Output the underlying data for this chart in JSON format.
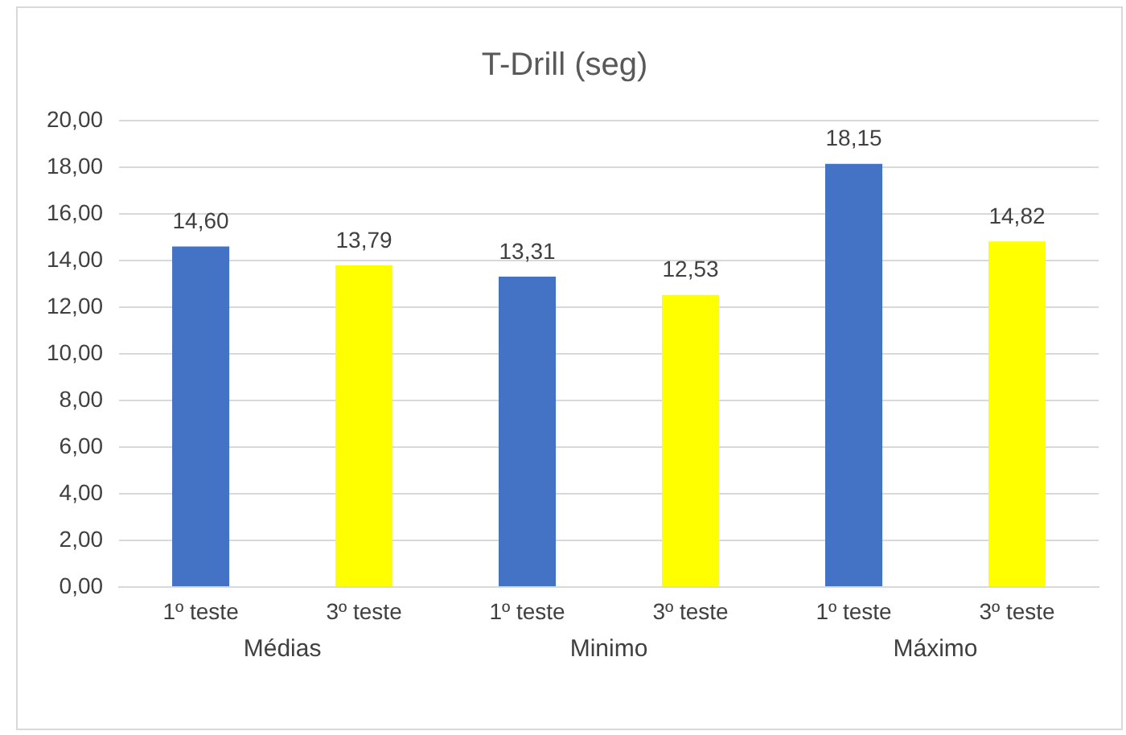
{
  "chart_data": {
    "type": "bar",
    "title": "T-Drill (seg)",
    "categories": [
      "Médias",
      "Minimo",
      "Máximo"
    ],
    "series": [
      {
        "name": "1º teste",
        "color": "#4472c4",
        "values": [
          14.6,
          13.31,
          18.15
        ],
        "value_labels": [
          "14,60",
          "13,31",
          "18,15"
        ]
      },
      {
        "name": "3º teste",
        "color": "#ffff00",
        "values": [
          13.79,
          12.53,
          14.82
        ],
        "value_labels": [
          "13,79",
          "12,53",
          "14,82"
        ]
      }
    ],
    "ylim": [
      0,
      20
    ],
    "yticks": [
      {
        "value": 0,
        "label": "0,00"
      },
      {
        "value": 2,
        "label": "2,00"
      },
      {
        "value": 4,
        "label": "4,00"
      },
      {
        "value": 6,
        "label": "6,00"
      },
      {
        "value": 8,
        "label": "8,00"
      },
      {
        "value": 10,
        "label": "10,00"
      },
      {
        "value": 12,
        "label": "12,00"
      },
      {
        "value": 14,
        "label": "14,00"
      },
      {
        "value": 16,
        "label": "16,00"
      },
      {
        "value": 18,
        "label": "18,00"
      },
      {
        "value": 20,
        "label": "20,00"
      }
    ],
    "grid": "y",
    "legend": false
  }
}
